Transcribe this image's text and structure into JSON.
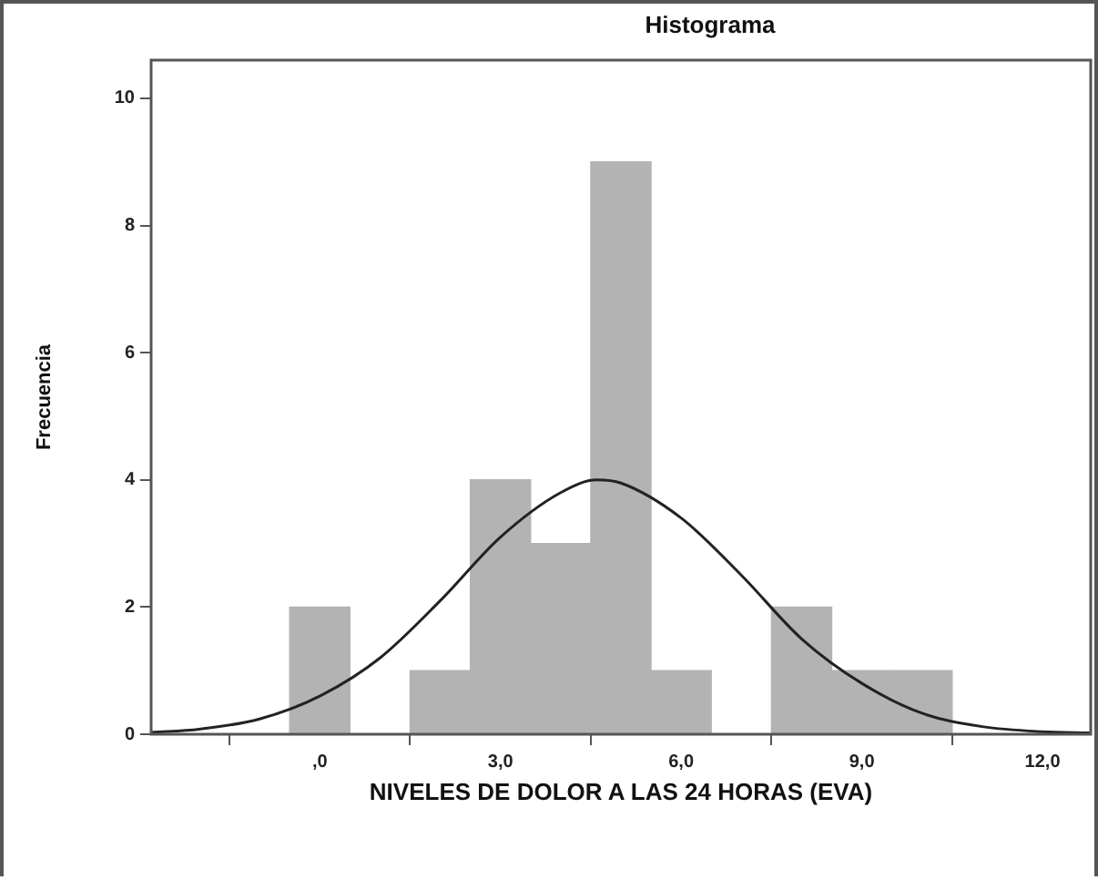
{
  "chart_data": {
    "type": "histogram",
    "title": "Histograma",
    "xlabel": "NIVELES DE DOLOR A LAS 24 HORAS (EVA)",
    "ylabel": "Frecuencia",
    "bins": [
      -0.5,
      0.5,
      1.5,
      2.5,
      3.5,
      4.5,
      5.5,
      6.5,
      7.5,
      8.5,
      9.5,
      10.5
    ],
    "values": [
      2,
      0,
      1,
      4,
      3,
      9,
      1,
      0,
      2,
      1,
      1
    ],
    "color": "#b3b3b3",
    "series": [
      {
        "type": "line",
        "color": "#222222",
        "marker": "none",
        "x": [
          -2.8,
          -2,
          -1,
          0,
          1,
          2,
          3,
          4,
          4.6,
          5,
          6,
          7,
          8,
          9,
          10,
          11,
          12,
          12.8
        ],
        "values": [
          0.03,
          0.08,
          0.24,
          0.6,
          1.2,
          2.1,
          3.1,
          3.8,
          4,
          3.95,
          3.4,
          2.5,
          1.5,
          0.8,
          0.33,
          0.12,
          0.04,
          0.02
        ]
      }
    ],
    "xlim": [
      -2.8,
      12.8
    ],
    "xticks": [
      {
        "value": 0,
        "label": ",0"
      },
      {
        "value": 3,
        "label": "3,0"
      },
      {
        "value": 6,
        "label": "6,0"
      },
      {
        "value": 9,
        "label": "9,0"
      },
      {
        "value": 12,
        "label": "12,0"
      }
    ],
    "ylim": [
      0,
      10.6
    ],
    "yticks": [
      0,
      2,
      4,
      6,
      8,
      10
    ],
    "grid": false,
    "legend": false
  }
}
